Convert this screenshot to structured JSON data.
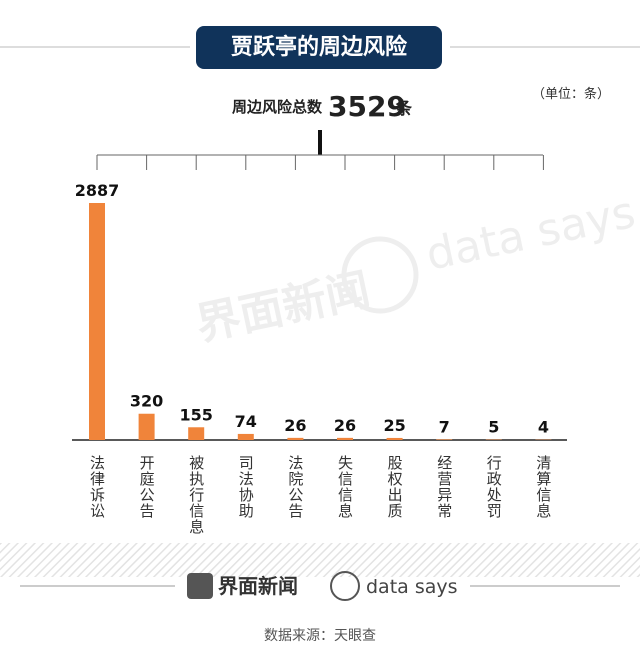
{
  "chart_data": {
    "type": "bar",
    "title": "贾跃亭的周边风险",
    "unit_note": "（单位：条）",
    "total_label": "周边风险总数",
    "total_value": 3529,
    "total_unit": "条",
    "categories": [
      "法律诉讼",
      "开庭公告",
      "被执行信息",
      "司法协助",
      "法院公告",
      "失信信息",
      "股权出质",
      "经营异常",
      "行政处罚",
      "清算信息"
    ],
    "values": [
      2887,
      320,
      155,
      74,
      26,
      26,
      25,
      7,
      5,
      4
    ],
    "color": "#f0843a",
    "watermarks": [
      "界面新闻",
      "data says"
    ],
    "footer": {
      "brand": "界面新闻",
      "brand2": "data says",
      "source": "数据来源：天眼查"
    }
  }
}
